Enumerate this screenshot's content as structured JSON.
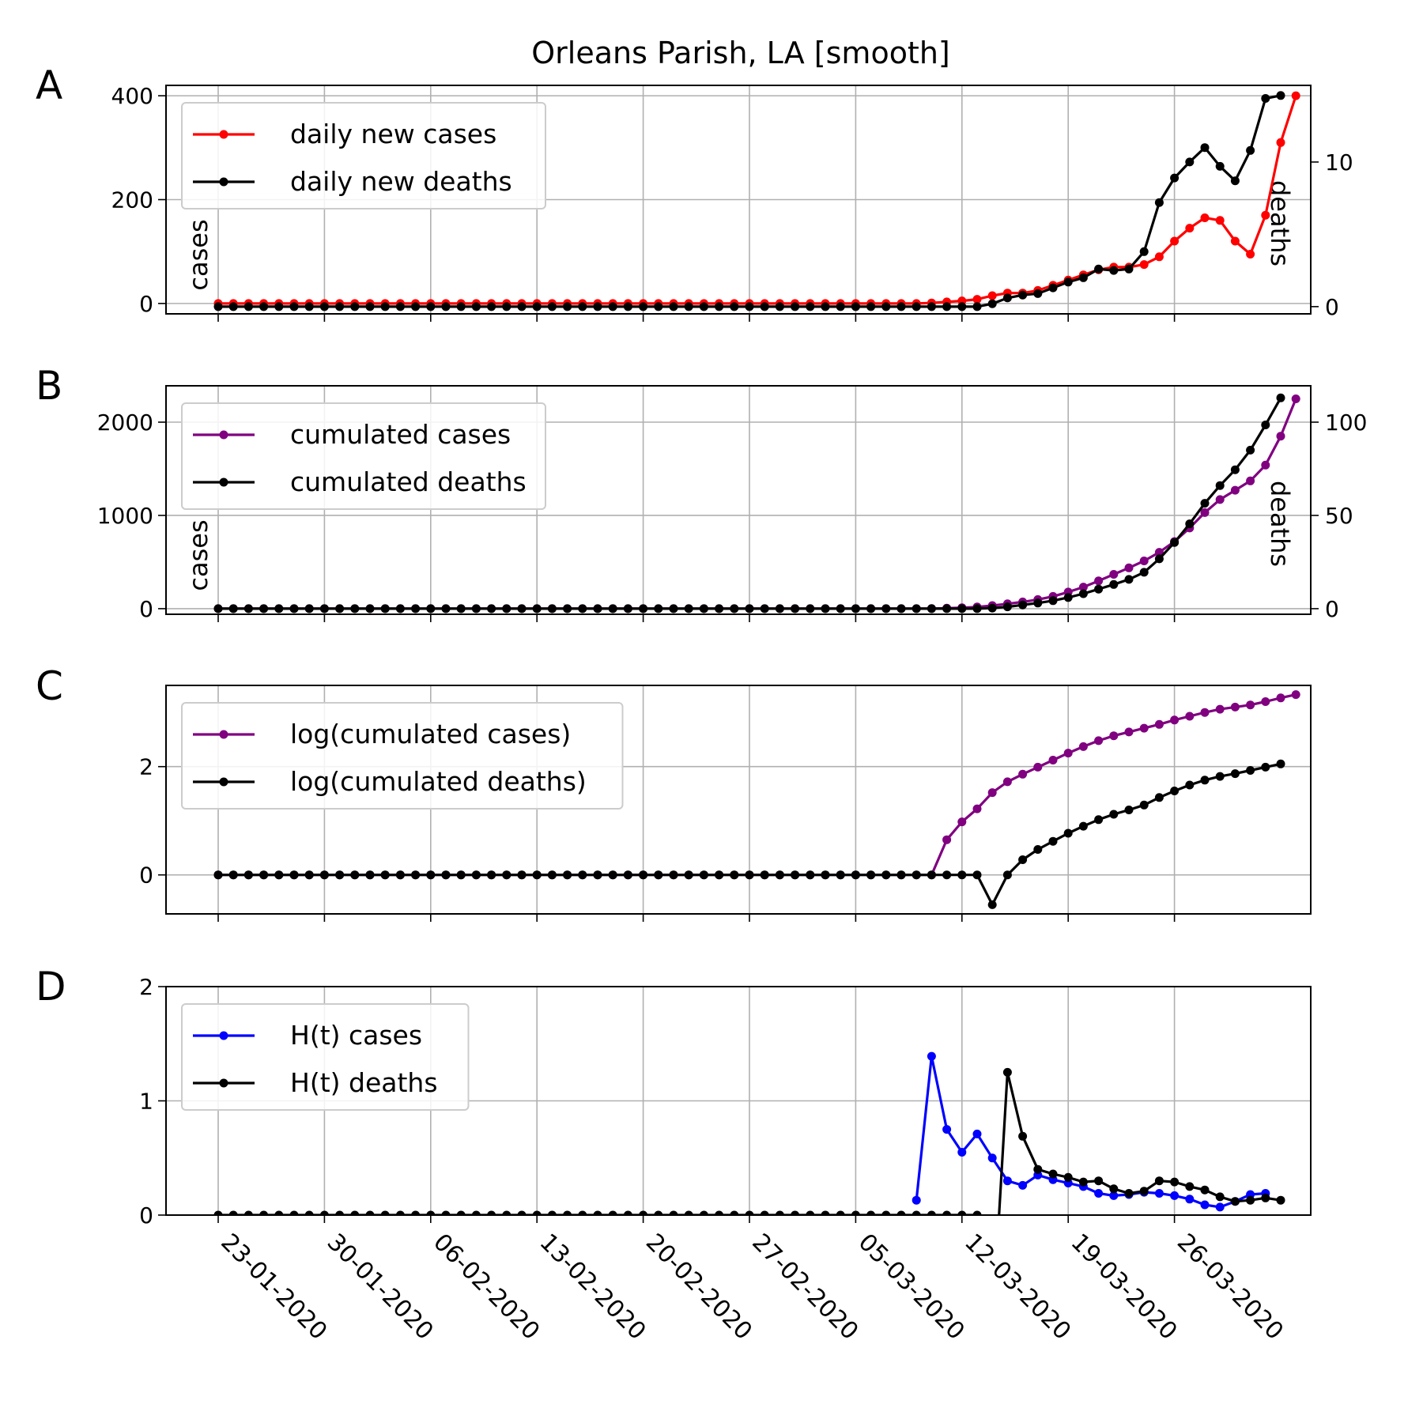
{
  "figure_title": "Orleans Parish, LA [smooth]",
  "x_dates": [
    "23-01-2020",
    "30-01-2020",
    "06-02-2020",
    "13-02-2020",
    "20-02-2020",
    "27-02-2020",
    "05-03-2020",
    "12-03-2020",
    "19-03-2020",
    "26-03-2020"
  ],
  "chart_data": [
    {
      "type": "line",
      "panel": "A",
      "title": "Orleans Parish, LA [smooth]",
      "x": {
        "start_date": "23-01-2020",
        "days": 70
      },
      "ylabel": "cases",
      "ylabel_right": "deaths",
      "ylim": [
        -20,
        420
      ],
      "yticks": [
        0,
        200,
        400
      ],
      "ylim_right": [
        -0.5,
        15.3
      ],
      "yticks_right": [
        0,
        10
      ],
      "legend_position": "upper left",
      "grid": true,
      "series": [
        {
          "name": "daily new cases",
          "color": "#ff0000",
          "axis": "left",
          "start_index": 0,
          "values": [
            0,
            0,
            0,
            0,
            0,
            0,
            0,
            0,
            0,
            0,
            0,
            0,
            0,
            0,
            0,
            0,
            0,
            0,
            0,
            0,
            0,
            0,
            0,
            0,
            0,
            0,
            0,
            0,
            0,
            0,
            0,
            0,
            0,
            0,
            0,
            0,
            0,
            0,
            0,
            0,
            0,
            0,
            0,
            0,
            0,
            0,
            0,
            1,
            3,
            5,
            8,
            15,
            20,
            20,
            25,
            35,
            45,
            55,
            65,
            70,
            70,
            75,
            90,
            120,
            145,
            165,
            160,
            120,
            95,
            170,
            310,
            400
          ]
        },
        {
          "name": "daily new deaths",
          "color": "#000000",
          "axis": "right",
          "start_index": 0,
          "values": [
            0,
            0,
            0,
            0,
            0,
            0,
            0,
            0,
            0,
            0,
            0,
            0,
            0,
            0,
            0,
            0,
            0,
            0,
            0,
            0,
            0,
            0,
            0,
            0,
            0,
            0,
            0,
            0,
            0,
            0,
            0,
            0,
            0,
            0,
            0,
            0,
            0,
            0,
            0,
            0,
            0,
            0,
            0,
            0,
            0,
            0,
            0,
            0,
            0,
            0,
            0,
            0.2,
            0.6,
            0.8,
            0.9,
            1.3,
            1.7,
            2,
            2.6,
            2.5,
            2.6,
            3.8,
            7.2,
            8.9,
            10,
            11,
            9.7,
            8.7,
            10.8,
            14.4,
            14.6
          ]
        }
      ]
    },
    {
      "type": "line",
      "panel": "B",
      "x": {
        "start_date": "23-01-2020",
        "days": 70
      },
      "ylabel": "cases",
      "ylabel_right": "deaths",
      "ylim": [
        -60,
        2390
      ],
      "yticks": [
        0,
        1000,
        2000
      ],
      "ylim_right": [
        -3,
        119.5
      ],
      "yticks_right": [
        0,
        50,
        100
      ],
      "legend_position": "upper left",
      "grid": true,
      "series": [
        {
          "name": "cumulated cases",
          "color": "#800080",
          "axis": "left",
          "start_index": 0,
          "values": [
            0,
            0,
            0,
            0,
            0,
            0,
            0,
            0,
            0,
            0,
            0,
            0,
            0,
            0,
            0,
            0,
            0,
            0,
            0,
            0,
            0,
            0,
            0,
            0,
            0,
            0,
            0,
            0,
            0,
            0,
            0,
            0,
            0,
            0,
            0,
            0,
            0,
            0,
            0,
            0,
            0,
            0,
            0,
            0,
            0,
            0,
            0,
            1,
            5,
            10,
            18,
            33,
            52,
            72,
            98,
            132,
            178,
            232,
            298,
            368,
            438,
            512,
            605,
            720,
            865,
            1030,
            1170,
            1270,
            1370,
            1540,
            1850,
            2250
          ]
        },
        {
          "name": "cumulated deaths",
          "color": "#000000",
          "axis": "right",
          "start_index": 0,
          "values": [
            0,
            0,
            0,
            0,
            0,
            0,
            0,
            0,
            0,
            0,
            0,
            0,
            0,
            0,
            0,
            0,
            0,
            0,
            0,
            0,
            0,
            0,
            0,
            0,
            0,
            0,
            0,
            0,
            0,
            0,
            0,
            0,
            0,
            0,
            0,
            0,
            0,
            0,
            0,
            0,
            0,
            0,
            0,
            0,
            0,
            0,
            0,
            0,
            0,
            0,
            0,
            0.3,
            1,
            2,
            3,
            4.3,
            6,
            8,
            10.5,
            13,
            15.7,
            19.5,
            26.7,
            35.5,
            45.5,
            56.5,
            66,
            74.5,
            85,
            98.5,
            113
          ]
        }
      ]
    },
    {
      "type": "line",
      "panel": "C",
      "x": {
        "start_date": "23-01-2020",
        "days": 70
      },
      "ylim": [
        -0.72,
        3.5
      ],
      "yticks": [
        0,
        2
      ],
      "legend_position": "upper left",
      "grid": true,
      "series": [
        {
          "name": "log(cumulated cases)",
          "color": "#800080",
          "start_index": 0,
          "values": [
            0,
            0,
            0,
            0,
            0,
            0,
            0,
            0,
            0,
            0,
            0,
            0,
            0,
            0,
            0,
            0,
            0,
            0,
            0,
            0,
            0,
            0,
            0,
            0,
            0,
            0,
            0,
            0,
            0,
            0,
            0,
            0,
            0,
            0,
            0,
            0,
            0,
            0,
            0,
            0,
            0,
            0,
            0,
            0,
            0,
            0,
            0,
            0,
            0.65,
            0.98,
            1.22,
            1.52,
            1.72,
            1.86,
            1.99,
            2.12,
            2.25,
            2.37,
            2.48,
            2.57,
            2.64,
            2.71,
            2.78,
            2.86,
            2.93,
            3,
            3.06,
            3.1,
            3.14,
            3.2,
            3.27,
            3.33
          ]
        },
        {
          "name": "log(cumulated deaths)",
          "color": "#000000",
          "start_index": 0,
          "values": [
            0,
            0,
            0,
            0,
            0,
            0,
            0,
            0,
            0,
            0,
            0,
            0,
            0,
            0,
            0,
            0,
            0,
            0,
            0,
            0,
            0,
            0,
            0,
            0,
            0,
            0,
            0,
            0,
            0,
            0,
            0,
            0,
            0,
            0,
            0,
            0,
            0,
            0,
            0,
            0,
            0,
            0,
            0,
            0,
            0,
            0,
            0,
            0,
            0,
            0,
            0,
            -0.55,
            0,
            0.28,
            0.47,
            0.62,
            0.77,
            0.9,
            1.02,
            1.12,
            1.2,
            1.29,
            1.43,
            1.55,
            1.66,
            1.75,
            1.82,
            1.87,
            1.93,
            1.99,
            2.05
          ]
        }
      ]
    },
    {
      "type": "line",
      "panel": "D",
      "x": {
        "start_date": "23-01-2020",
        "days": 70
      },
      "ylim": [
        0,
        2
      ],
      "yticks": [
        0,
        1,
        2
      ],
      "legend_position": "upper left",
      "grid": true,
      "series": [
        {
          "name": "H(t) cases",
          "color": "#0000ff",
          "start_index": 46,
          "values": [
            0.13,
            1.39,
            0.75,
            0.55,
            0.71,
            0.5,
            0.3,
            0.26,
            0.35,
            0.31,
            0.28,
            0.25,
            0.19,
            0.17,
            0.18,
            0.2,
            0.19,
            0.17,
            0.14,
            0.09,
            0.07,
            0.12,
            0.18,
            0.19
          ]
        },
        {
          "name": "H(t) deaths",
          "color": "#000000",
          "start_index": 0,
          "values": [
            0,
            0,
            0,
            0,
            0,
            0,
            0,
            0,
            0,
            0,
            0,
            0,
            0,
            0,
            0,
            0,
            0,
            0,
            0,
            0,
            0,
            0,
            0,
            0,
            0,
            0,
            0,
            0,
            0,
            0,
            0,
            0,
            0,
            0,
            0,
            0,
            0,
            0,
            0,
            0,
            0,
            0,
            0,
            0,
            0,
            0,
            0,
            0,
            0,
            0,
            0,
            -1,
            1.25,
            0.69,
            0.4,
            0.36,
            0.33,
            0.29,
            0.3,
            0.23,
            0.19,
            0.21,
            0.3,
            0.29,
            0.25,
            0.22,
            0.16,
            0.12,
            0.13,
            0.15,
            0.13
          ]
        }
      ]
    }
  ]
}
